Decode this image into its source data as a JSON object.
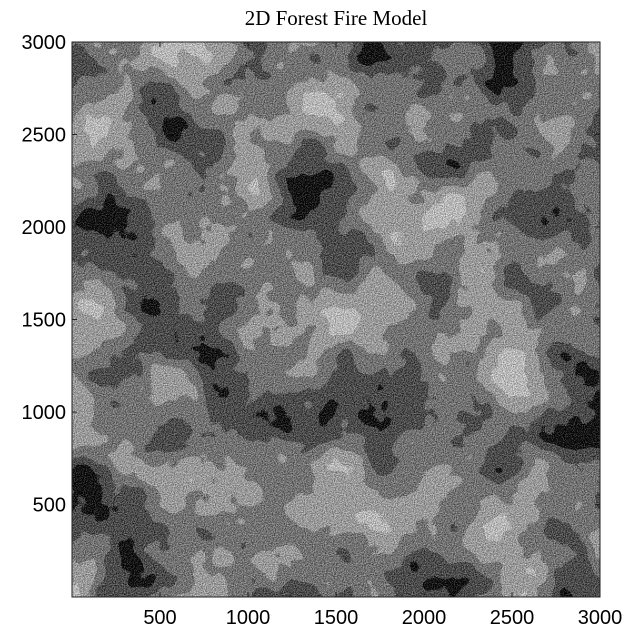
{
  "chart_data": {
    "type": "image",
    "title": "2D Forest Fire Model",
    "xlim": [
      0,
      3000
    ],
    "ylim": [
      0,
      3000
    ],
    "xticks": [
      500,
      1000,
      1500,
      2000,
      2500,
      3000
    ],
    "yticks": [
      500,
      1000,
      1500,
      2000,
      2500,
      3000
    ]
  }
}
